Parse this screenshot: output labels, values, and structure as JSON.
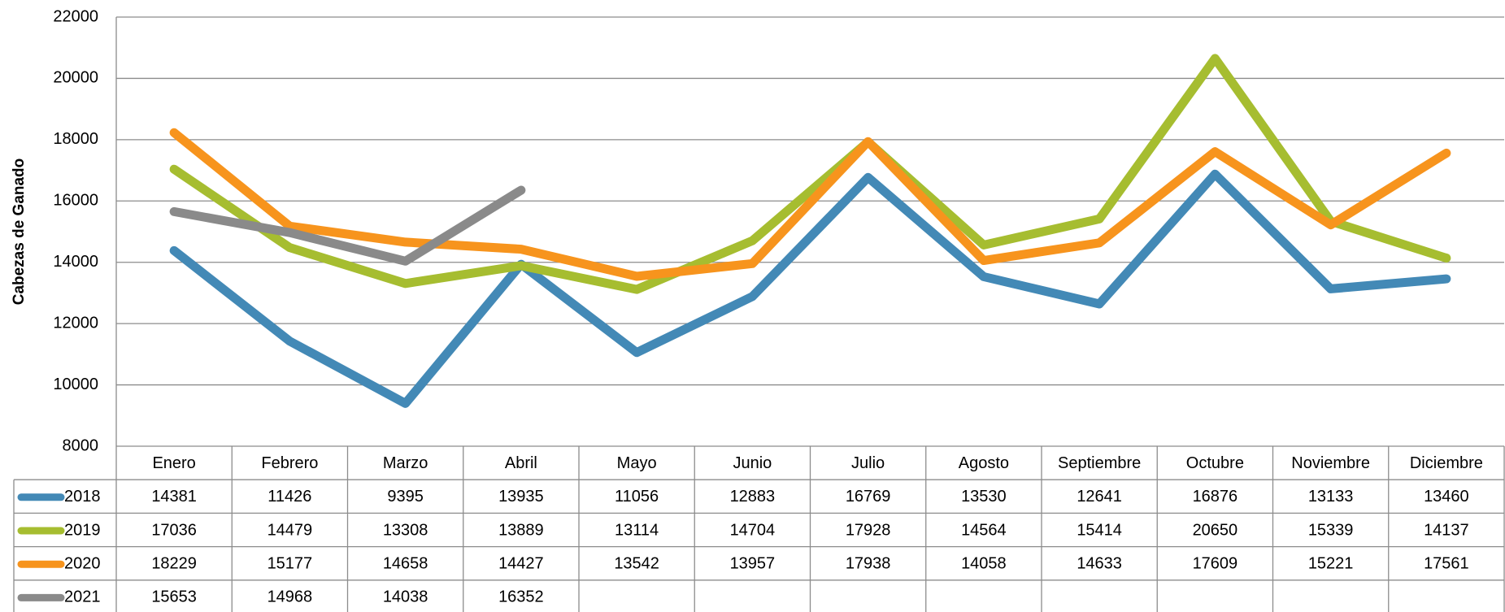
{
  "chart_data": {
    "type": "line",
    "y_label": "Cabezas de Ganado",
    "categories": [
      "Enero",
      "Febrero",
      "Marzo",
      "Abril",
      "Mayo",
      "Junio",
      "Julio",
      "Agosto",
      "Septiembre",
      "Octubre",
      "Noviembre",
      "Diciembre"
    ],
    "series": [
      {
        "name": "2018",
        "color": "#4389b6",
        "values": [
          14381,
          11426,
          9395,
          13935,
          11056,
          12883,
          16769,
          13530,
          12641,
          16876,
          13133,
          13460
        ]
      },
      {
        "name": "2019",
        "color": "#a6bd30",
        "values": [
          17036,
          14479,
          13308,
          13889,
          13114,
          14704,
          17928,
          14564,
          15414,
          20650,
          15339,
          14137
        ]
      },
      {
        "name": "2020",
        "color": "#f7941d",
        "values": [
          18229,
          15177,
          14658,
          14427,
          13542,
          13957,
          17938,
          14058,
          14633,
          17609,
          15221,
          17561
        ]
      },
      {
        "name": "2021",
        "color": "#8a8a8a",
        "values": [
          15653,
          14968,
          14038,
          16352,
          null,
          null,
          null,
          null,
          null,
          null,
          null,
          null
        ]
      }
    ],
    "ylim": [
      8000,
      22000
    ],
    "yticks": [
      8000,
      10000,
      12000,
      14000,
      16000,
      18000,
      20000,
      22000
    ],
    "grid": true
  }
}
